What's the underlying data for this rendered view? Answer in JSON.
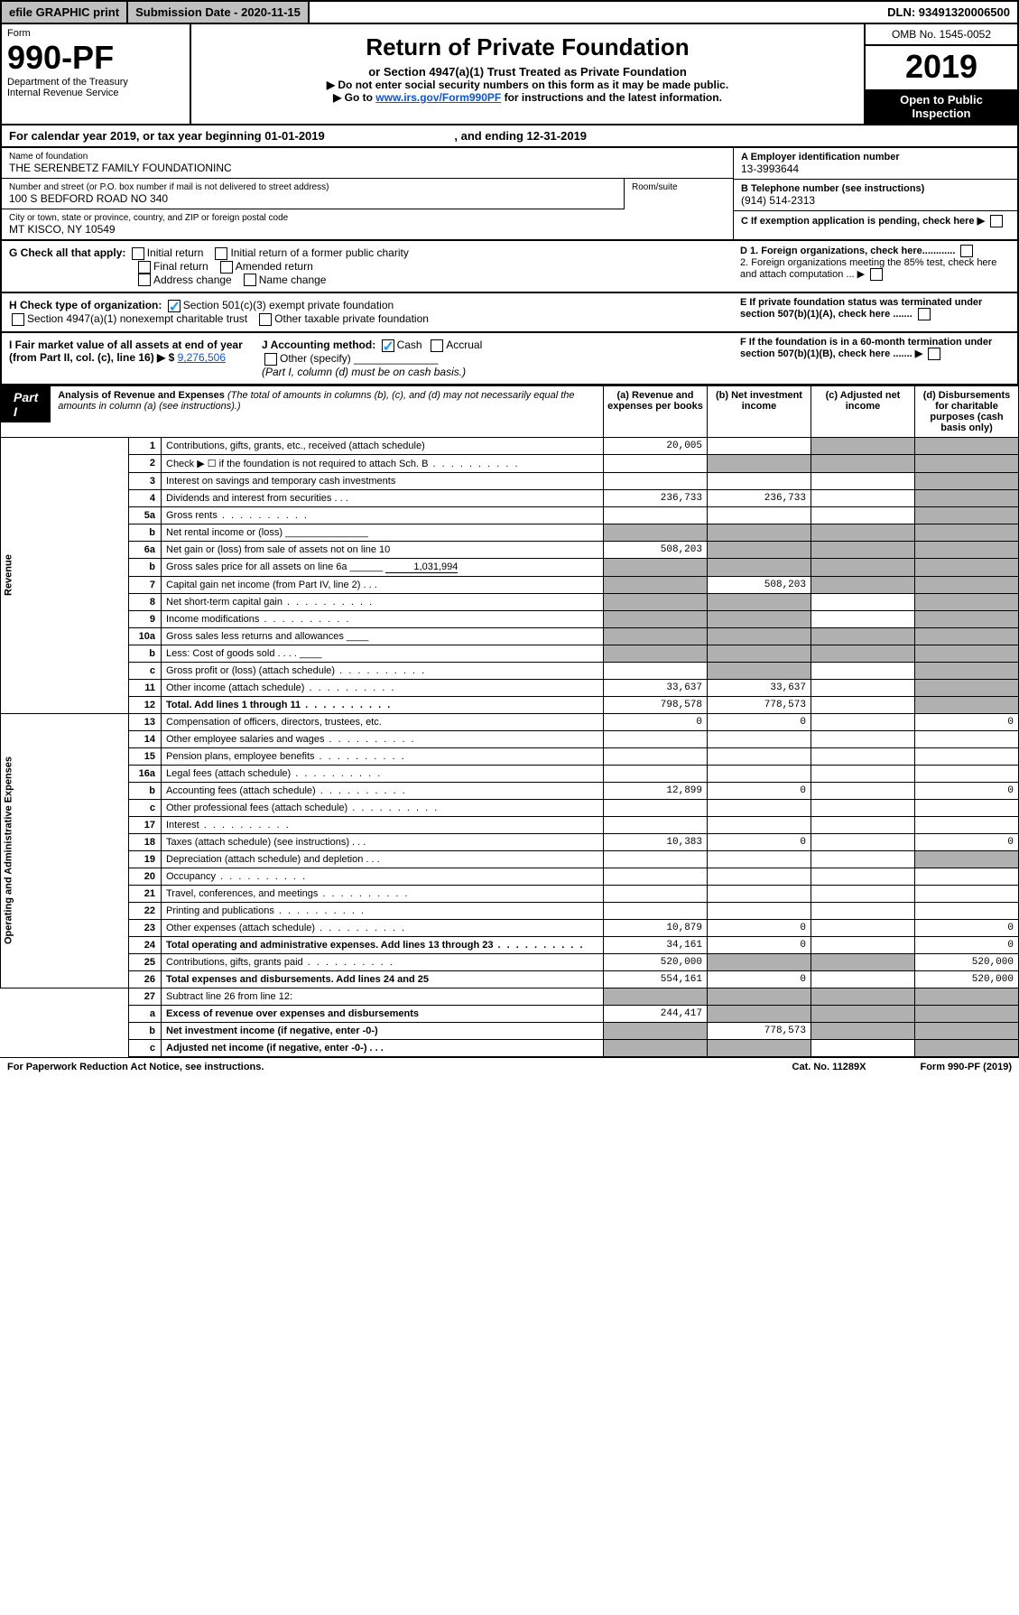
{
  "top": {
    "efile": "efile GRAPHIC print",
    "submission": "Submission Date - 2020-11-15",
    "dln": "DLN: 93491320006500"
  },
  "header": {
    "form_word": "Form",
    "form_num": "990-PF",
    "dept": "Department of the Treasury",
    "irs": "Internal Revenue Service",
    "title": "Return of Private Foundation",
    "subtitle": "or Section 4947(a)(1) Trust Treated as Private Foundation",
    "note1": "▶ Do not enter social security numbers on this form as it may be made public.",
    "note2_pre": "▶ Go to ",
    "note2_link": "www.irs.gov/Form990PF",
    "note2_post": " for instructions and the latest information.",
    "omb": "OMB No. 1545-0052",
    "year": "2019",
    "open": "Open to Public Inspection"
  },
  "cal_year": {
    "pre": "For calendar year 2019, or tax year beginning ",
    "begin": "01-01-2019",
    "mid": " , and ending ",
    "end": "12-31-2019"
  },
  "entity": {
    "name_lbl": "Name of foundation",
    "name": "THE SERENBETZ FAMILY FOUNDATIONINC",
    "addr_lbl": "Number and street (or P.O. box number if mail is not delivered to street address)",
    "addr": "100 S BEDFORD ROAD NO 340",
    "room_lbl": "Room/suite",
    "city_lbl": "City or town, state or province, country, and ZIP or foreign postal code",
    "city": "MT KISCO, NY  10549",
    "ein_lbl": "A Employer identification number",
    "ein": "13-3993644",
    "tel_lbl": "B Telephone number (see instructions)",
    "tel": "(914) 514-2313",
    "c_lbl": "C If exemption application is pending, check here ▶"
  },
  "checks": {
    "g_lbl": "G Check all that apply:",
    "initial": "Initial return",
    "initial_former": "Initial return of a former public charity",
    "final": "Final return",
    "amended": "Amended return",
    "addr_chg": "Address change",
    "name_chg": "Name change",
    "h_lbl": "H Check type of organization:",
    "h_501c3": "Section 501(c)(3) exempt private foundation",
    "h_4947": "Section 4947(a)(1) nonexempt charitable trust",
    "h_other_pf": "Other taxable private foundation",
    "i_lbl": "I Fair market value of all assets at end of year (from Part II, col. (c), line 16) ▶ $",
    "i_val": "9,276,506",
    "j_lbl": "J Accounting method:",
    "j_cash": "Cash",
    "j_accrual": "Accrual",
    "j_other": "Other (specify)",
    "j_note": "(Part I, column (d) must be on cash basis.)",
    "d1": "D 1. Foreign organizations, check here............",
    "d2": "2. Foreign organizations meeting the 85% test, check here and attach computation ...",
    "e": "E  If private foundation status was terminated under section 507(b)(1)(A), check here .......",
    "f": "F  If the foundation is in a 60-month termination under section 507(b)(1)(B), check here .......  ▶"
  },
  "part1": {
    "label": "Part I",
    "title": "Analysis of Revenue and Expenses",
    "title_note": "(The total of amounts in columns (b), (c), and (d) may not necessarily equal the amounts in column (a) (see instructions).)",
    "col_a": "(a)   Revenue and expenses per books",
    "col_b": "(b)  Net investment income",
    "col_c": "(c)  Adjusted net income",
    "col_d": "(d)  Disbursements for charitable purposes (cash basis only)"
  },
  "sections": {
    "revenue": "Revenue",
    "expenses": "Operating and Administrative Expenses"
  },
  "rows": [
    {
      "n": "1",
      "d": "Contributions, gifts, grants, etc., received (attach schedule)",
      "a": "20,005",
      "b": "",
      "c": "shade",
      "dd": "shade"
    },
    {
      "n": "2",
      "d": "Check ▶ ☐ if the foundation is not required to attach Sch. B",
      "a": "",
      "b": "shade",
      "c": "shade",
      "dd": "shade",
      "dot": 1
    },
    {
      "n": "3",
      "d": "Interest on savings and temporary cash investments",
      "a": "",
      "b": "",
      "c": "",
      "dd": "shade"
    },
    {
      "n": "4",
      "d": "Dividends and interest from securities   .   .   .",
      "a": "236,733",
      "b": "236,733",
      "c": "",
      "dd": "shade"
    },
    {
      "n": "5a",
      "d": "Gross rents",
      "a": "",
      "b": "",
      "c": "",
      "dd": "shade",
      "dot": 1
    },
    {
      "n": "b",
      "d": "Net rental income or (loss)  _______________",
      "a": "shade",
      "b": "shade",
      "c": "shade",
      "dd": "shade"
    },
    {
      "n": "6a",
      "d": "Net gain or (loss) from sale of assets not on line 10",
      "a": "508,203",
      "b": "shade",
      "c": "shade",
      "dd": "shade"
    },
    {
      "n": "b",
      "d": "Gross sales price for all assets on line 6a ______",
      "a": "shade",
      "b": "shade",
      "c": "shade",
      "dd": "shade",
      "inline": "1,031,994"
    },
    {
      "n": "7",
      "d": "Capital gain net income (from Part IV, line 2)   .   .   .",
      "a": "shade",
      "b": "508,203",
      "c": "shade",
      "dd": "shade"
    },
    {
      "n": "8",
      "d": "Net short-term capital gain",
      "a": "shade",
      "b": "shade",
      "c": "",
      "dd": "shade",
      "dot": 1
    },
    {
      "n": "9",
      "d": "Income modifications",
      "a": "shade",
      "b": "shade",
      "c": "",
      "dd": "shade",
      "dot": 1
    },
    {
      "n": "10a",
      "d": "Gross sales less returns and allowances  ____",
      "a": "shade",
      "b": "shade",
      "c": "shade",
      "dd": "shade"
    },
    {
      "n": "b",
      "d": "Less: Cost of goods sold    .   .   .   .  ____",
      "a": "shade",
      "b": "shade",
      "c": "shade",
      "dd": "shade"
    },
    {
      "n": "c",
      "d": "Gross profit or (loss) (attach schedule)",
      "a": "",
      "b": "shade",
      "c": "",
      "dd": "shade",
      "dot": 1
    },
    {
      "n": "11",
      "d": "Other income (attach schedule)",
      "a": "33,637",
      "b": "33,637",
      "c": "",
      "dd": "shade",
      "dot": 1
    },
    {
      "n": "12",
      "d": "Total. Add lines 1 through 11",
      "a": "798,578",
      "b": "778,573",
      "c": "",
      "dd": "shade",
      "bold": 1,
      "dot": 1
    }
  ],
  "exp_rows": [
    {
      "n": "13",
      "d": "Compensation of officers, directors, trustees, etc.",
      "a": "0",
      "b": "0",
      "c": "",
      "dd": "0"
    },
    {
      "n": "14",
      "d": "Other employee salaries and wages",
      "a": "",
      "b": "",
      "c": "",
      "dd": "",
      "dot": 1
    },
    {
      "n": "15",
      "d": "Pension plans, employee benefits",
      "a": "",
      "b": "",
      "c": "",
      "dd": "",
      "dot": 1
    },
    {
      "n": "16a",
      "d": "Legal fees (attach schedule)",
      "a": "",
      "b": "",
      "c": "",
      "dd": "",
      "dot": 1
    },
    {
      "n": "b",
      "d": "Accounting fees (attach schedule)",
      "a": "12,899",
      "b": "0",
      "c": "",
      "dd": "0",
      "dot": 1
    },
    {
      "n": "c",
      "d": "Other professional fees (attach schedule)",
      "a": "",
      "b": "",
      "c": "",
      "dd": "",
      "dot": 1
    },
    {
      "n": "17",
      "d": "Interest",
      "a": "",
      "b": "",
      "c": "",
      "dd": "",
      "dot": 1
    },
    {
      "n": "18",
      "d": "Taxes (attach schedule) (see instructions)   .   .   .",
      "a": "10,383",
      "b": "0",
      "c": "",
      "dd": "0"
    },
    {
      "n": "19",
      "d": "Depreciation (attach schedule) and depletion   .   .   .",
      "a": "",
      "b": "",
      "c": "",
      "dd": "shade"
    },
    {
      "n": "20",
      "d": "Occupancy",
      "a": "",
      "b": "",
      "c": "",
      "dd": "",
      "dot": 1
    },
    {
      "n": "21",
      "d": "Travel, conferences, and meetings",
      "a": "",
      "b": "",
      "c": "",
      "dd": "",
      "dot": 1
    },
    {
      "n": "22",
      "d": "Printing and publications",
      "a": "",
      "b": "",
      "c": "",
      "dd": "",
      "dot": 1
    },
    {
      "n": "23",
      "d": "Other expenses (attach schedule)",
      "a": "10,879",
      "b": "0",
      "c": "",
      "dd": "0",
      "dot": 1
    },
    {
      "n": "24",
      "d": "Total operating and administrative expenses. Add lines 13 through 23",
      "a": "34,161",
      "b": "0",
      "c": "",
      "dd": "0",
      "bold": 1,
      "dot": 1
    },
    {
      "n": "25",
      "d": "Contributions, gifts, grants paid",
      "a": "520,000",
      "b": "shade",
      "c": "shade",
      "dd": "520,000",
      "dot": 1
    },
    {
      "n": "26",
      "d": "Total expenses and disbursements. Add lines 24 and 25",
      "a": "554,161",
      "b": "0",
      "c": "",
      "dd": "520,000",
      "bold": 1
    }
  ],
  "line27": [
    {
      "n": "27",
      "d": "Subtract line 26 from line 12:",
      "a": "shade",
      "b": "shade",
      "c": "shade",
      "dd": "shade"
    },
    {
      "n": "a",
      "d": "Excess of revenue over expenses and disbursements",
      "a": "244,417",
      "b": "shade",
      "c": "shade",
      "dd": "shade",
      "bold": 1
    },
    {
      "n": "b",
      "d": "Net investment income (if negative, enter -0-)",
      "a": "shade",
      "b": "778,573",
      "c": "shade",
      "dd": "shade",
      "bold": 1
    },
    {
      "n": "c",
      "d": "Adjusted net income (if negative, enter -0-)   .   .   .",
      "a": "shade",
      "b": "shade",
      "c": "",
      "dd": "shade",
      "bold": 1
    }
  ],
  "footer": {
    "pra": "For Paperwork Reduction Act Notice, see instructions.",
    "cat": "Cat. No. 11289X",
    "form": "Form 990-PF (2019)"
  }
}
